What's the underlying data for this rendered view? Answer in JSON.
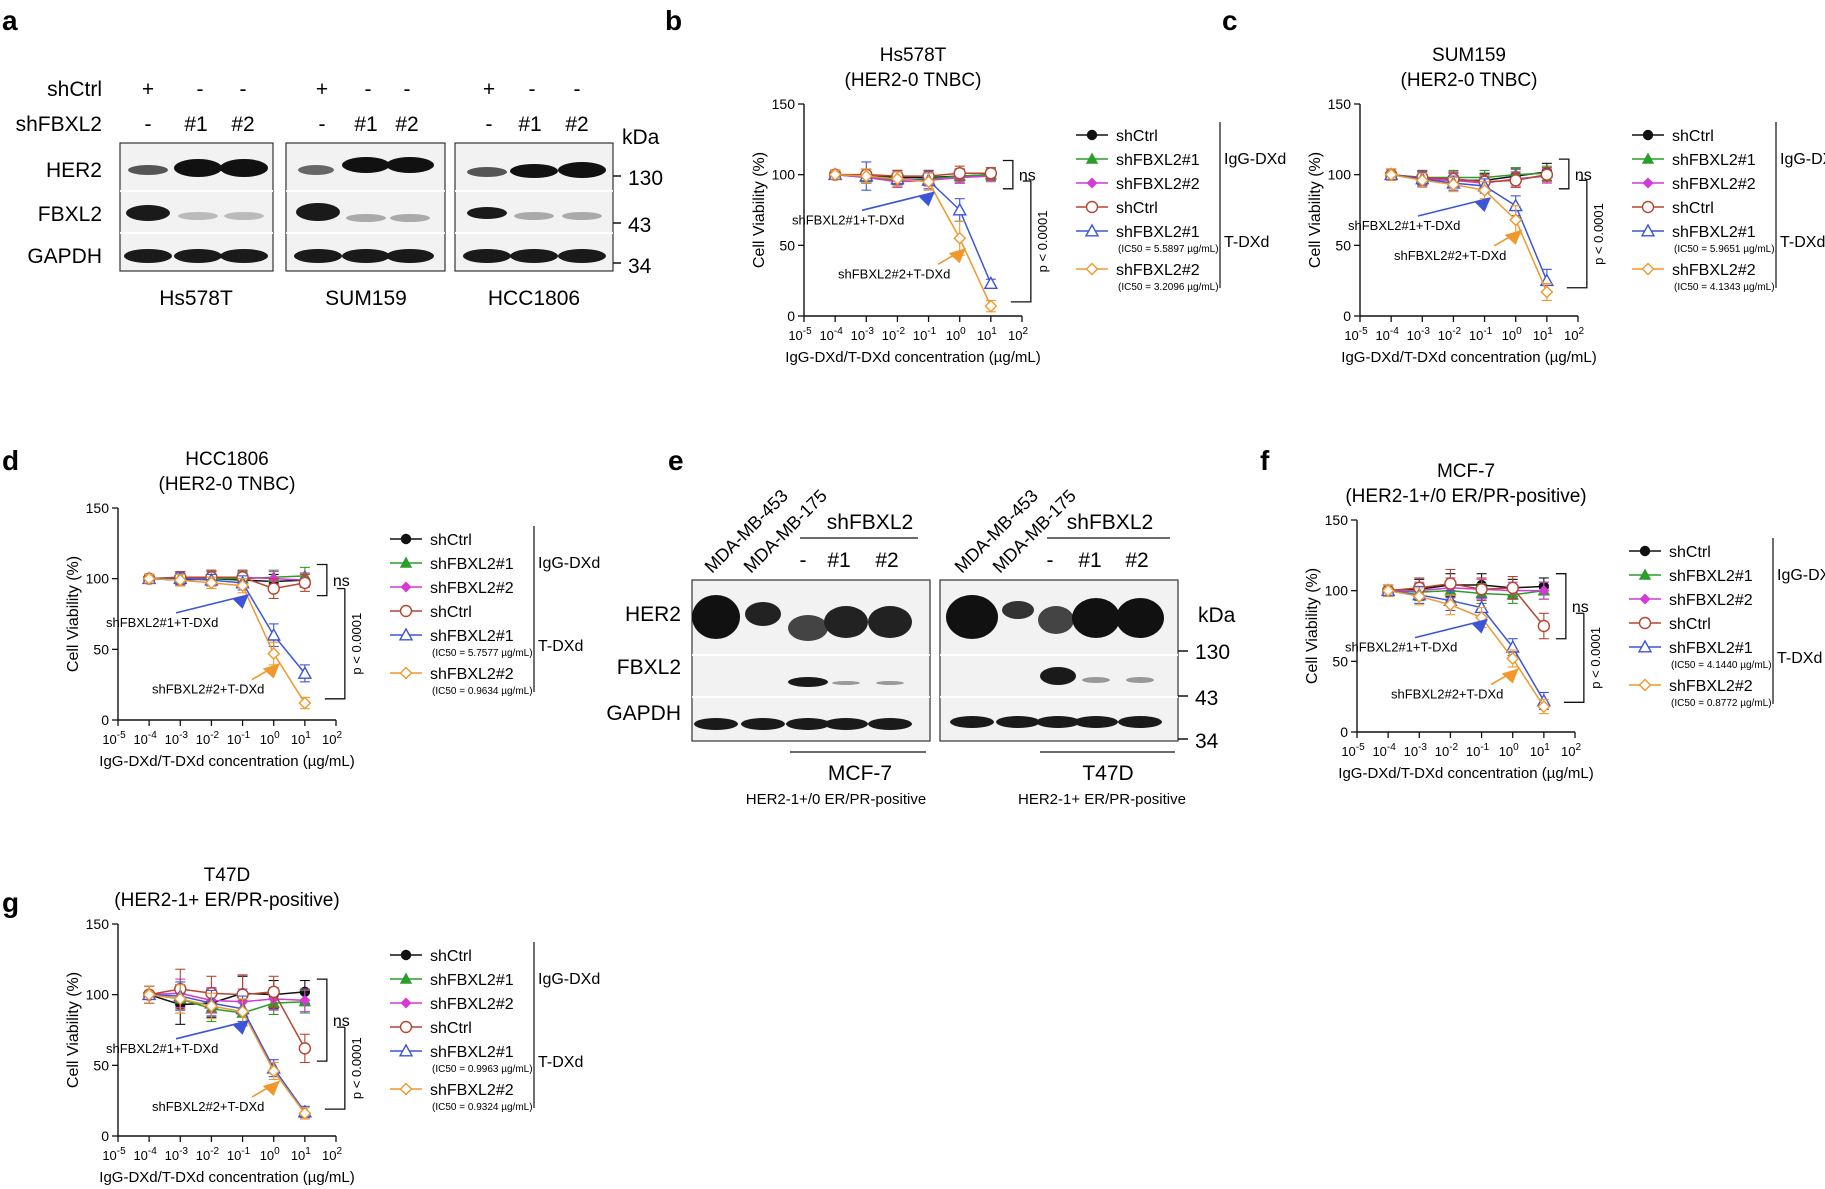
{
  "figure": {
    "panel_labels": [
      "a",
      "b",
      "c",
      "d",
      "e",
      "f",
      "g"
    ],
    "unit_kda": "kDa",
    "conc_xlabel": "IgG-DXd/T-DXd concentration (µg/mL)",
    "ylabel": "Cell Viability (%)",
    "x_tick_labels": [
      "10^-5",
      "10^-4",
      "10^-3",
      "10^-2",
      "10^-1",
      "10^0",
      "10^1",
      "10^2"
    ],
    "y_ticks": [
      0,
      50,
      100,
      150
    ],
    "arrow_label_1": "shFBXL2#1+T-DXd",
    "arrow_label_2": "shFBXL2#2+T-DXd",
    "ns_label": "ns",
    "p_label": "p < 0.0001",
    "group_igg": "IgG-DXd",
    "group_tdxd": "T-DXd",
    "colors": {
      "black": "#111111",
      "green": "#2a9d2a",
      "magenta": "#d43ad4",
      "brown": "#b5462f",
      "blue": "#3c55d8",
      "orange": "#f0982c"
    }
  },
  "blot_a": {
    "row_shctrl_label": "shCtrl",
    "row_shfbxl2_label": "shFBXL2",
    "shctrl_marks": [
      "+",
      "-",
      "-"
    ],
    "shfbxl2_marks": [
      "-",
      "#1",
      "#2"
    ],
    "proteins": [
      "HER2",
      "FBXL2",
      "GAPDH"
    ],
    "markers": [
      "130",
      "43",
      "34"
    ],
    "cell_lines": [
      "Hs578T",
      "SUM159",
      "HCC1806"
    ]
  },
  "blot_e": {
    "ref_lines": [
      "MDA-MB-453",
      "MDA-MB-175"
    ],
    "group_label": "shFBXL2",
    "knockdown_marks": [
      "-",
      "#1",
      "#2"
    ],
    "proteins": [
      "HER2",
      "FBXL2",
      "GAPDH"
    ],
    "markers": [
      "130",
      "43",
      "34"
    ],
    "cell_lines": [
      "MCF-7",
      "T47D"
    ],
    "subtypes": [
      "HER2-1+/0 ER/PR-positive",
      "HER2-1+ ER/PR-positive"
    ]
  },
  "chart_data": [
    {
      "panel": "b",
      "type": "line",
      "title": "Hs578T",
      "subtitle": "(HER2-0 TNBC)",
      "xlabel": "IgG-DXd/T-DXd concentration (µg/mL)",
      "ylabel": "Cell Viability (%)",
      "x_log10": [
        -4,
        -3,
        -2,
        -1,
        0,
        1
      ],
      "xlim_log10": [
        -5,
        2
      ],
      "ylim": [
        0,
        150
      ],
      "series": [
        {
          "name": "shCtrl",
          "group": "IgG-DXd",
          "marker": "circle-filled",
          "color": "#111111",
          "values": [
            100,
            99,
            98,
            98,
            99,
            100
          ],
          "err": [
            3,
            5,
            5,
            5,
            5,
            4
          ]
        },
        {
          "name": "shFBXL2#1",
          "group": "IgG-DXd",
          "marker": "triangle-filled",
          "color": "#2a9d2a",
          "values": [
            100,
            98,
            96,
            97,
            99,
            100
          ],
          "err": [
            3,
            4,
            5,
            4,
            4,
            4
          ]
        },
        {
          "name": "shFBXL2#2",
          "group": "IgG-DXd",
          "marker": "diamond-filled",
          "color": "#d43ad4",
          "values": [
            100,
            98,
            95,
            96,
            98,
            99
          ],
          "err": [
            3,
            4,
            4,
            4,
            4,
            4
          ]
        },
        {
          "name": "shCtrl",
          "group": "T-DXd",
          "marker": "circle-open",
          "color": "#b5462f",
          "values": [
            100,
            100,
            99,
            99,
            101,
            101
          ],
          "err": [
            3,
            4,
            4,
            4,
            5,
            4
          ]
        },
        {
          "name": "shFBXL2#1",
          "group": "T-DXd",
          "marker": "triangle-open",
          "color": "#3c55d8",
          "values": [
            100,
            99,
            97,
            96,
            75,
            23
          ],
          "err": [
            3,
            10,
            5,
            6,
            8,
            3
          ],
          "ic50": "(IC50 = 5.5897 µg/mL)"
        },
        {
          "name": "shFBXL2#2",
          "group": "T-DXd",
          "marker": "diamond-open",
          "color": "#f0982c",
          "values": [
            100,
            99,
            97,
            95,
            55,
            7
          ],
          "err": [
            3,
            5,
            5,
            6,
            12,
            4
          ],
          "ic50": "(IC50 = 3.2096 µg/mL)"
        }
      ]
    },
    {
      "panel": "c",
      "type": "line",
      "title": "SUM159",
      "subtitle": "(HER2-0 TNBC)",
      "xlabel": "IgG-DXd/T-DXd concentration (µg/mL)",
      "ylabel": "Cell Viability (%)",
      "x_log10": [
        -4,
        -3,
        -2,
        -1,
        0,
        1
      ],
      "xlim_log10": [
        -5,
        2
      ],
      "ylim": [
        0,
        150
      ],
      "series": [
        {
          "name": "shCtrl",
          "group": "IgG-DXd",
          "marker": "circle-filled",
          "color": "#111111",
          "values": [
            100,
            97,
            96,
            96,
            99,
            102
          ],
          "err": [
            4,
            5,
            5,
            5,
            5,
            6
          ]
        },
        {
          "name": "shFBXL2#1",
          "group": "IgG-DXd",
          "marker": "triangle-filled",
          "color": "#2a9d2a",
          "values": [
            100,
            98,
            98,
            98,
            100,
            101
          ],
          "err": [
            4,
            5,
            5,
            5,
            5,
            5
          ]
        },
        {
          "name": "shFBXL2#2",
          "group": "IgG-DXd",
          "marker": "diamond-filled",
          "color": "#d43ad4",
          "values": [
            100,
            97,
            96,
            94,
            97,
            99
          ],
          "err": [
            4,
            5,
            5,
            5,
            5,
            5
          ]
        },
        {
          "name": "shCtrl",
          "group": "T-DXd",
          "marker": "circle-open",
          "color": "#b5462f",
          "values": [
            100,
            98,
            97,
            95,
            96,
            100
          ],
          "err": [
            4,
            5,
            5,
            5,
            5,
            5
          ]
        },
        {
          "name": "shFBXL2#1",
          "group": "T-DXd",
          "marker": "triangle-open",
          "color": "#3c55d8",
          "values": [
            100,
            97,
            94,
            92,
            78,
            25
          ],
          "err": [
            4,
            5,
            5,
            5,
            7,
            8
          ]
        },
        {
          "name": "shFBXL2#2",
          "group": "T-DXd",
          "marker": "diamond-open",
          "color": "#f0982c",
          "values": [
            100,
            96,
            93,
            89,
            68,
            17
          ],
          "err": [
            4,
            5,
            5,
            6,
            10,
            6
          ]
        }
      ],
      "ic50": [
        "(IC50 = 5.9651 µg/mL)",
        "(IC50 = 4.1343 µg/mL)"
      ]
    },
    {
      "panel": "d",
      "type": "line",
      "title": "HCC1806",
      "subtitle": "(HER2-0 TNBC)",
      "xlabel": "IgG-DXd/T-DXd concentration (µg/mL)",
      "ylabel": "Cell Viability (%)",
      "x_log10": [
        -4,
        -3,
        -2,
        -1,
        0,
        1
      ],
      "xlim_log10": [
        -5,
        2
      ],
      "ylim": [
        0,
        150
      ],
      "series": [
        {
          "name": "shCtrl",
          "group": "IgG-DXd",
          "marker": "circle-filled",
          "color": "#111111",
          "values": [
            100,
            99,
            100,
            99,
            98,
            99
          ],
          "err": [
            3,
            4,
            5,
            5,
            5,
            5
          ]
        },
        {
          "name": "shFBXL2#1",
          "group": "IgG-DXd",
          "marker": "triangle-filled",
          "color": "#2a9d2a",
          "values": [
            100,
            101,
            100,
            100,
            101,
            102
          ],
          "err": [
            3,
            4,
            5,
            5,
            5,
            6
          ]
        },
        {
          "name": "shFBXL2#2",
          "group": "IgG-DXd",
          "marker": "diamond-filled",
          "color": "#d43ad4",
          "values": [
            100,
            100,
            101,
            101,
            100,
            99
          ],
          "err": [
            3,
            4,
            5,
            5,
            5,
            5
          ]
        },
        {
          "name": "shCtrl",
          "group": "T-DXd",
          "marker": "circle-open",
          "color": "#b5462f",
          "values": [
            100,
            101,
            101,
            101,
            93,
            97
          ],
          "err": [
            3,
            4,
            5,
            5,
            7,
            6
          ]
        },
        {
          "name": "shFBXL2#1",
          "group": "T-DXd",
          "marker": "triangle-open",
          "color": "#3c55d8",
          "values": [
            100,
            100,
            99,
            97,
            60,
            33
          ],
          "err": [
            3,
            4,
            4,
            5,
            8,
            6
          ]
        },
        {
          "name": "shFBXL2#2",
          "group": "T-DXd",
          "marker": "diamond-open",
          "color": "#f0982c",
          "values": [
            100,
            99,
            97,
            95,
            47,
            12
          ],
          "err": [
            3,
            4,
            4,
            5,
            8,
            4
          ]
        }
      ],
      "ic50": [
        "(IC50 = 5.7577 µg/mL)",
        "(IC50 = 0.9634 µg/mL)"
      ]
    },
    {
      "panel": "f",
      "type": "line",
      "title": "MCF-7",
      "subtitle": "(HER2-1+/0 ER/PR-positive)",
      "xlabel": "IgG-DXd/T-DXd concentration (µg/mL)",
      "ylabel": "Cell Viability (%)",
      "x_log10": [
        -4,
        -3,
        -2,
        -1,
        0,
        1
      ],
      "xlim_log10": [
        -5,
        2
      ],
      "ylim": [
        0,
        150
      ],
      "series": [
        {
          "name": "shCtrl",
          "group": "IgG-DXd",
          "marker": "circle-filled",
          "color": "#111111",
          "values": [
            100,
            101,
            104,
            104,
            102,
            103
          ],
          "err": [
            4,
            7,
            8,
            8,
            6,
            6
          ]
        },
        {
          "name": "shFBXL2#1",
          "group": "IgG-DXd",
          "marker": "triangle-filled",
          "color": "#2a9d2a",
          "values": [
            100,
            99,
            100,
            98,
            97,
            100
          ],
          "err": [
            4,
            6,
            7,
            7,
            6,
            6
          ]
        },
        {
          "name": "shFBXL2#2",
          "group": "IgG-DXd",
          "marker": "diamond-filled",
          "color": "#d43ad4",
          "values": [
            100,
            100,
            102,
            101,
            100,
            100
          ],
          "err": [
            4,
            6,
            7,
            7,
            6,
            6
          ]
        },
        {
          "name": "shCtrl",
          "group": "T-DXd",
          "marker": "circle-open",
          "color": "#b5462f",
          "values": [
            100,
            102,
            105,
            101,
            102,
            75
          ],
          "err": [
            4,
            7,
            10,
            8,
            8,
            9
          ]
        },
        {
          "name": "shFBXL2#1",
          "group": "T-DXd",
          "marker": "triangle-open",
          "color": "#3c55d8",
          "values": [
            100,
            97,
            93,
            88,
            60,
            22
          ],
          "err": [
            4,
            6,
            7,
            7,
            6,
            6
          ]
        },
        {
          "name": "shFBXL2#2",
          "group": "T-DXd",
          "marker": "diamond-open",
          "color": "#f0982c",
          "values": [
            100,
            96,
            90,
            81,
            52,
            18
          ],
          "err": [
            4,
            6,
            7,
            7,
            6,
            5
          ]
        }
      ],
      "ic50": [
        "(IC50 = 4.1440 µg/mL)",
        "(IC50 = 0.8772 µg/mL)"
      ]
    },
    {
      "panel": "g",
      "type": "line",
      "title": "T47D",
      "subtitle": "(HER2-1+ ER/PR-positive)",
      "xlabel": "IgG-DXd/T-DXd concentration (µg/mL)",
      "ylabel": "Cell Viability (%)",
      "x_log10": [
        -4,
        -3,
        -2,
        -1,
        0,
        1
      ],
      "xlim_log10": [
        -5,
        2
      ],
      "ylim": [
        0,
        150
      ],
      "series": [
        {
          "name": "shCtrl",
          "group": "IgG-DXd",
          "marker": "circle-filled",
          "color": "#111111",
          "values": [
            100,
            93,
            94,
            101,
            100,
            102
          ],
          "err": [
            6,
            14,
            10,
            12,
            10,
            8
          ]
        },
        {
          "name": "shFBXL2#1",
          "group": "IgG-DXd",
          "marker": "triangle-filled",
          "color": "#2a9d2a",
          "values": [
            100,
            97,
            90,
            87,
            94,
            95
          ],
          "err": [
            6,
            10,
            9,
            9,
            8,
            8
          ]
        },
        {
          "name": "shFBXL2#2",
          "group": "IgG-DXd",
          "marker": "diamond-filled",
          "color": "#d43ad4",
          "values": [
            100,
            101,
            96,
            95,
            97,
            96
          ],
          "err": [
            6,
            10,
            9,
            9,
            8,
            8
          ]
        },
        {
          "name": "shCtrl",
          "group": "T-DXd",
          "marker": "circle-open",
          "color": "#b5462f",
          "values": [
            100,
            104,
            101,
            100,
            102,
            62
          ],
          "err": [
            6,
            14,
            12,
            14,
            11,
            10
          ]
        },
        {
          "name": "shFBXL2#1",
          "group": "T-DXd",
          "marker": "triangle-open",
          "color": "#3c55d8",
          "values": [
            100,
            99,
            94,
            90,
            48,
            17
          ],
          "err": [
            6,
            10,
            9,
            9,
            6,
            4
          ]
        },
        {
          "name": "shFBXL2#2",
          "group": "T-DXd",
          "marker": "diamond-open",
          "color": "#f0982c",
          "values": [
            100,
            97,
            92,
            88,
            46,
            16
          ],
          "err": [
            6,
            10,
            9,
            9,
            6,
            4
          ]
        }
      ],
      "ic50": [
        "(IC50 = 0.9963 µg/mL)",
        "(IC50 = 0.9324 µg/mL)"
      ]
    }
  ]
}
